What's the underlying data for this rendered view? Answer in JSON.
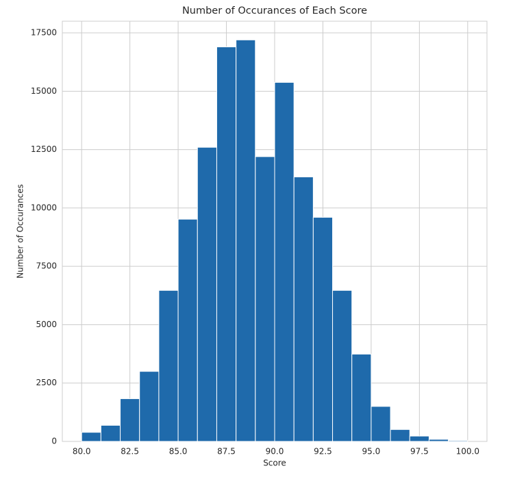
{
  "chart_data": {
    "type": "histogram",
    "title": "Number of Occurances of Each Score",
    "xlabel": "Score",
    "ylabel": "Number of Occurances",
    "bins": [
      80,
      81,
      82,
      83,
      84,
      85,
      86,
      87,
      88,
      89,
      90,
      91,
      92,
      93,
      94,
      95,
      96,
      97,
      98,
      99,
      100
    ],
    "values": [
      390,
      690,
      1830,
      3000,
      6470,
      9520,
      12600,
      16900,
      17200,
      12200,
      15380,
      11330,
      9600,
      6470,
      3740,
      1500,
      510,
      230,
      90,
      40
    ],
    "color": "#1f6aab",
    "xlim": [
      79,
      101
    ],
    "ylim": [
      0,
      18000
    ],
    "xticks": [
      {
        "value": 80,
        "label": "80.0"
      },
      {
        "value": 82.5,
        "label": "82.5"
      },
      {
        "value": 85,
        "label": "85.0"
      },
      {
        "value": 87.5,
        "label": "87.5"
      },
      {
        "value": 90,
        "label": "90.0"
      },
      {
        "value": 92.5,
        "label": "92.5"
      },
      {
        "value": 95,
        "label": "95.0"
      },
      {
        "value": 97.5,
        "label": "97.5"
      },
      {
        "value": 100,
        "label": "100.0"
      }
    ],
    "yticks": [
      0,
      2500,
      5000,
      7500,
      10000,
      12500,
      15000,
      17500
    ],
    "grid": true
  }
}
